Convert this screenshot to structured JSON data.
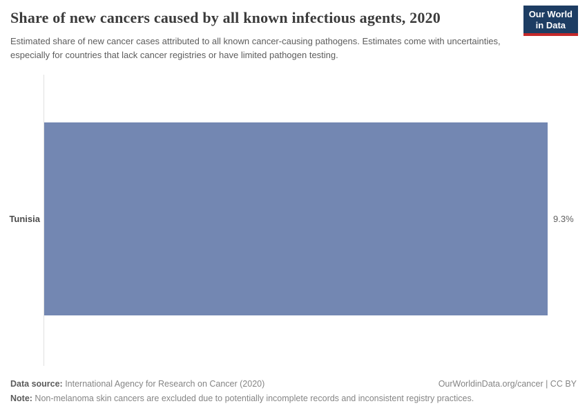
{
  "header": {
    "title": "Share of new cancers caused by all known infectious agents, 2020",
    "subtitle": "Estimated share of new cancer cases attributed to all known cancer-causing pathogens. Estimates come with uncertainties, especially for countries that lack cancer registries or have limited pathogen testing.",
    "logo": {
      "line1": "Our World",
      "line2": "in Data"
    }
  },
  "chart_data": {
    "type": "bar",
    "orientation": "horizontal",
    "categories": [
      "Tunisia"
    ],
    "values": [
      9.3
    ],
    "value_labels": [
      "9.3%"
    ],
    "title": "Share of new cancers caused by all known infectious agents, 2020",
    "xlabel": "",
    "ylabel": "",
    "xlim": [
      0,
      9.3
    ],
    "grid": false,
    "legend": false
  },
  "footer": {
    "data_source_label": "Data source:",
    "data_source": " International Agency for Research on Cancer (2020)",
    "link": "OurWorldinData.org/cancer | CC BY",
    "note_label": "Note:",
    "note": " Non-melanoma skin cancers are excluded due to potentially incomplete records and inconsistent registry practices."
  },
  "colors": {
    "bar": "#7387b2",
    "axis": "#e0e0e0",
    "logo_bg": "#1d3d63",
    "logo_accent": "#c5292a"
  }
}
